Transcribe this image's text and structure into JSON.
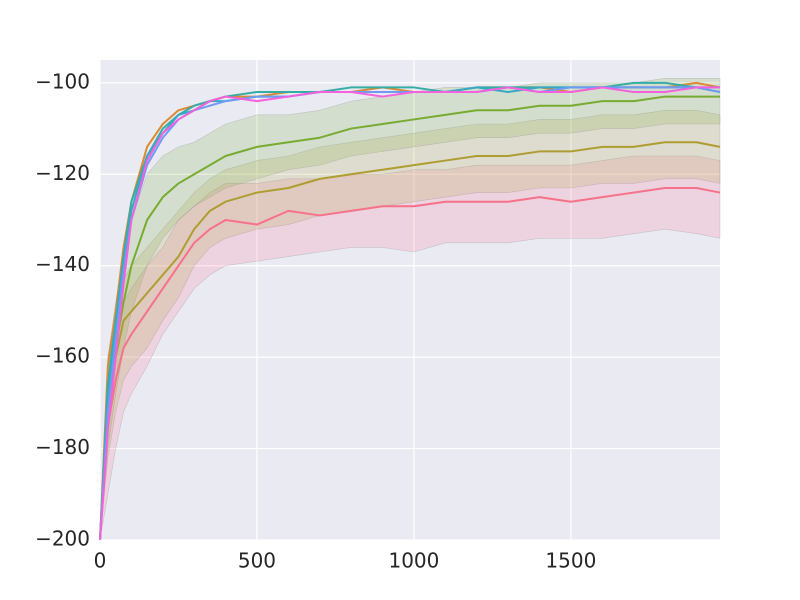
{
  "chart_data": {
    "type": "line",
    "x": [
      0,
      25,
      50,
      75,
      100,
      150,
      200,
      250,
      300,
      350,
      400,
      500,
      600,
      700,
      800,
      900,
      1000,
      1100,
      1200,
      1300,
      1400,
      1500,
      1600,
      1700,
      1800,
      1900,
      1975
    ],
    "xlim": [
      0,
      1975
    ],
    "xticks": [
      0,
      500,
      1000,
      1500
    ],
    "ylim": [
      -200,
      -95
    ],
    "yticks": [
      {
        "value": -200,
        "label": "−200"
      },
      {
        "value": -180,
        "label": "−180"
      },
      {
        "value": -160,
        "label": "−160"
      },
      {
        "value": -140,
        "label": "−140"
      },
      {
        "value": -120,
        "label": "−120"
      },
      {
        "value": -100,
        "label": "−100"
      }
    ],
    "grid": true,
    "series": [
      {
        "color": "#f77189",
        "values": [
          -200,
          -175,
          -165,
          -158,
          -155,
          -150,
          -145,
          -140,
          -135,
          -132,
          -130,
          -131,
          -128,
          -129,
          -128,
          -127,
          -127,
          -126,
          -126,
          -126,
          -125,
          -126,
          -125,
          -124,
          -123,
          -123,
          -124
        ],
        "lower": [
          -200,
          -190,
          -180,
          -172,
          -168,
          -162,
          -155,
          -150,
          -145,
          -142,
          -140,
          -139,
          -138,
          -137,
          -136,
          -136,
          -137,
          -135,
          -135,
          -135,
          -134,
          -134,
          -134,
          -133,
          -132,
          -133,
          -134
        ],
        "upper": [
          -200,
          -165,
          -155,
          -148,
          -145,
          -140,
          -136,
          -130,
          -127,
          -124,
          -122,
          -122,
          -121,
          -121,
          -120,
          -120,
          -119,
          -119,
          -118,
          -118,
          -118,
          -118,
          -117,
          -116,
          -116,
          -116,
          -117
        ]
      },
      {
        "color": "#ae9d31",
        "values": [
          -200,
          -170,
          -160,
          -152,
          -150,
          -146,
          -142,
          -138,
          -132,
          -128,
          -126,
          -124,
          -123,
          -121,
          -120,
          -119,
          -118,
          -117,
          -116,
          -116,
          -115,
          -115,
          -114,
          -114,
          -113,
          -113,
          -114
        ],
        "lower": [
          -200,
          -182,
          -172,
          -165,
          -162,
          -158,
          -152,
          -147,
          -140,
          -136,
          -134,
          -132,
          -131,
          -129,
          -128,
          -127,
          -126,
          -125,
          -124,
          -124,
          -123,
          -123,
          -122,
          -122,
          -121,
          -121,
          -122
        ],
        "upper": [
          -200,
          -160,
          -150,
          -143,
          -140,
          -136,
          -132,
          -128,
          -124,
          -121,
          -119,
          -117,
          -116,
          -114,
          -113,
          -112,
          -111,
          -110,
          -109,
          -109,
          -108,
          -108,
          -107,
          -107,
          -106,
          -106,
          -107
        ]
      },
      {
        "color": "#77ab31",
        "values": [
          -200,
          -170,
          -158,
          -148,
          -140,
          -130,
          -125,
          -122,
          -120,
          -118,
          -116,
          -114,
          -113,
          -112,
          -110,
          -109,
          -108,
          -107,
          -106,
          -106,
          -105,
          -105,
          -104,
          -104,
          -103,
          -103,
          -103
        ],
        "lower": [
          -200,
          -180,
          -168,
          -158,
          -150,
          -140,
          -134,
          -130,
          -127,
          -125,
          -123,
          -121,
          -119,
          -118,
          -116,
          -115,
          -114,
          -113,
          -112,
          -112,
          -111,
          -111,
          -110,
          -110,
          -109,
          -109,
          -109
        ],
        "upper": [
          -200,
          -160,
          -148,
          -138,
          -130,
          -120,
          -116,
          -114,
          -113,
          -111,
          -109,
          -107,
          -107,
          -106,
          -104,
          -103,
          -102,
          -101,
          -101,
          -101,
          -100,
          -100,
          -100,
          -100,
          -99,
          -99,
          -99
        ]
      },
      {
        "color": "#dc8932",
        "values": [
          -200,
          -162,
          -150,
          -136,
          -126,
          -114,
          -109,
          -106,
          -105,
          -104,
          -103,
          -103,
          -102,
          -102,
          -102,
          -101,
          -102,
          -102,
          -101,
          -101,
          -101,
          -102,
          -101,
          -101,
          -101,
          -100,
          -101
        ]
      },
      {
        "color": "#36ada4",
        "values": [
          -200,
          -166,
          -152,
          -138,
          -126,
          -116,
          -110,
          -107,
          -105,
          -104,
          -103,
          -102,
          -102,
          -102,
          -101,
          -101,
          -101,
          -102,
          -101,
          -101,
          -101,
          -101,
          -101,
          -100,
          -100,
          -101,
          -102
        ]
      },
      {
        "color": "#38a9c5",
        "values": [
          -200,
          -168,
          -153,
          -139,
          -128,
          -116,
          -111,
          -107,
          -106,
          -104,
          -104,
          -103,
          -103,
          -102,
          -102,
          -102,
          -102,
          -102,
          -101,
          -102,
          -101,
          -101,
          -101,
          -101,
          -101,
          -101,
          -101
        ]
      },
      {
        "color": "#6e9bf4",
        "values": [
          -200,
          -172,
          -156,
          -141,
          -130,
          -118,
          -112,
          -108,
          -106,
          -105,
          -104,
          -103,
          -103,
          -102,
          -102,
          -102,
          -102,
          -102,
          -102,
          -101,
          -102,
          -101,
          -101,
          -101,
          -101,
          -101,
          -102
        ]
      },
      {
        "color": "#f461dd",
        "values": [
          -200,
          -176,
          -160,
          -144,
          -130,
          -117,
          -111,
          -108,
          -106,
          -104,
          -103,
          -104,
          -103,
          -102,
          -102,
          -103,
          -102,
          -102,
          -102,
          -101,
          -102,
          -102,
          -101,
          -102,
          -102,
          -101,
          -101
        ]
      }
    ]
  }
}
